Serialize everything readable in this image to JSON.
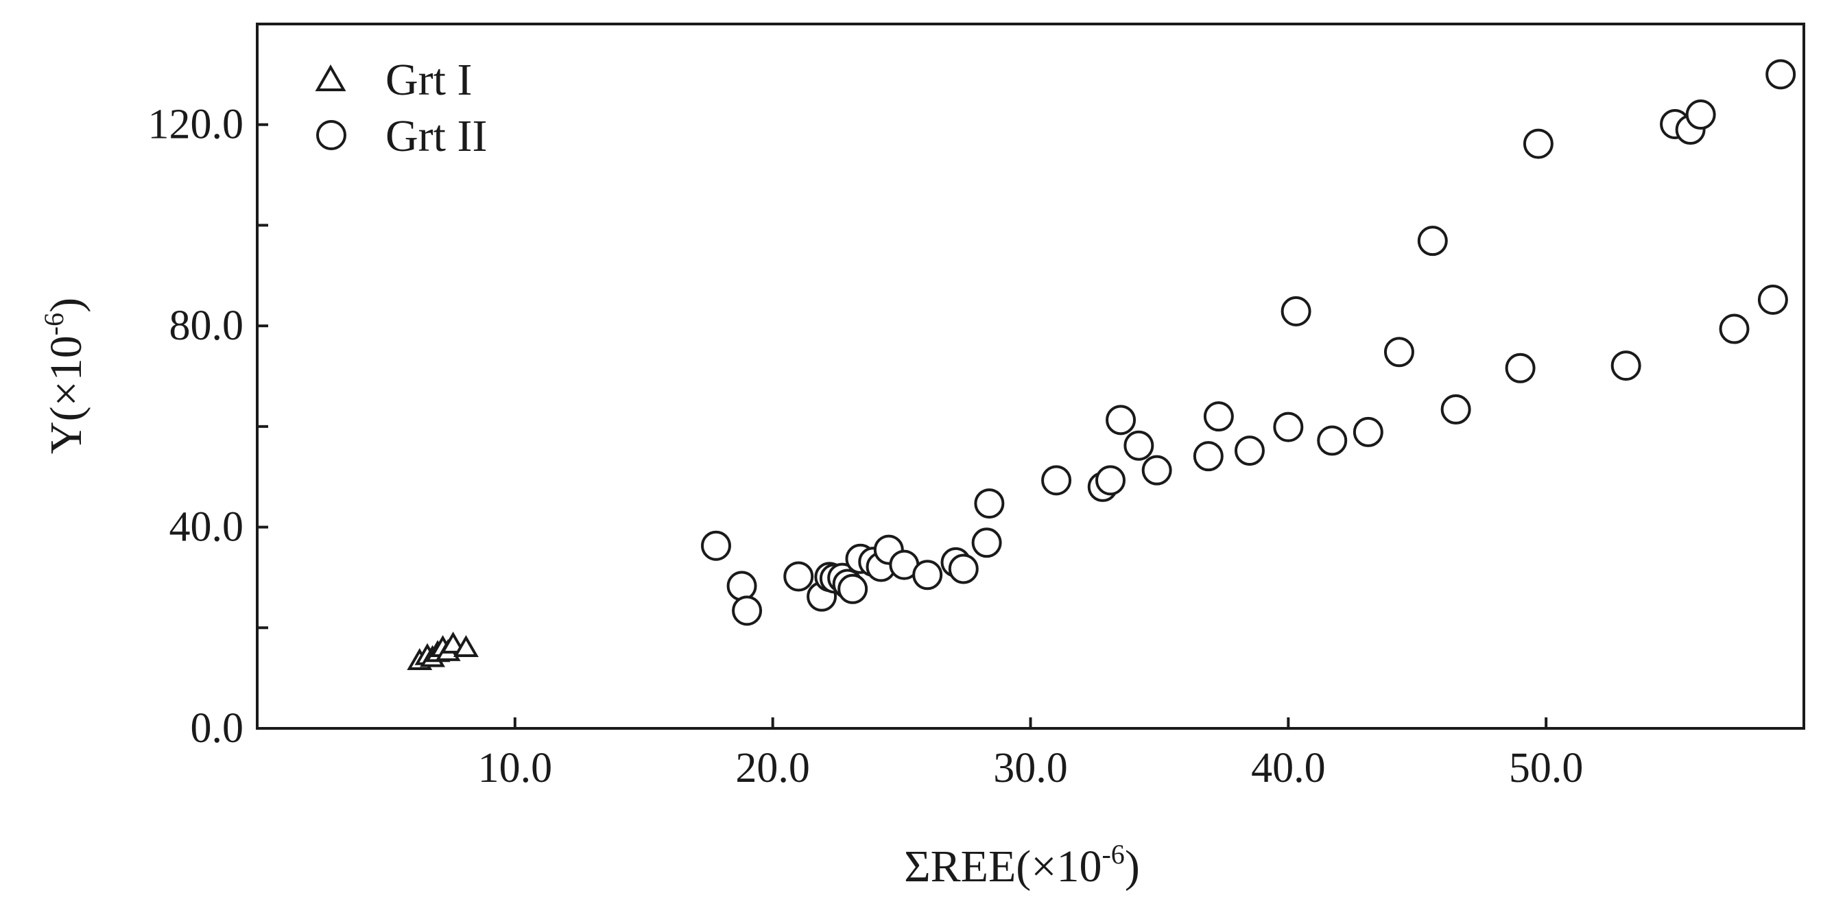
{
  "chart_data": {
    "type": "scatter",
    "xlabel": {
      "base": "ΣREE(×10",
      "exp": "-6",
      "close": ")"
    },
    "ylabel": {
      "base": "Y(×10",
      "exp": "-6",
      "close": ")"
    },
    "xlim": [
      0,
      60
    ],
    "ylim": [
      0,
      140
    ],
    "xticks": [
      10,
      20,
      30,
      40,
      50
    ],
    "xticklabels": [
      "10.0",
      "20.0",
      "30.0",
      "40.0",
      "50.0"
    ],
    "yticks": [
      0,
      40,
      80,
      120
    ],
    "yticklabels": [
      "0.0",
      "40.0",
      "80.0",
      "120.0"
    ],
    "yminor": [
      20,
      60,
      100
    ],
    "grid": false,
    "legend_position": "top-left",
    "series": [
      {
        "name": "Grt I",
        "marker": "triangle",
        "points": [
          [
            6.3,
            13.2
          ],
          [
            6.6,
            14.2
          ],
          [
            6.8,
            13.8
          ],
          [
            7.0,
            14.8
          ],
          [
            7.2,
            15.8
          ],
          [
            7.4,
            15.0
          ],
          [
            7.6,
            16.5
          ],
          [
            8.1,
            15.8
          ]
        ]
      },
      {
        "name": "Grt II",
        "marker": "circle",
        "points": [
          [
            17.8,
            36.3
          ],
          [
            18.8,
            28.3
          ],
          [
            19.0,
            23.4
          ],
          [
            21.0,
            30.2
          ],
          [
            21.9,
            26.2
          ],
          [
            22.2,
            30.1
          ],
          [
            22.4,
            29.8
          ],
          [
            22.7,
            29.9
          ],
          [
            22.9,
            28.7
          ],
          [
            23.1,
            27.7
          ],
          [
            23.4,
            33.7
          ],
          [
            23.9,
            33.1
          ],
          [
            24.2,
            32.1
          ],
          [
            24.5,
            35.5
          ],
          [
            25.1,
            32.5
          ],
          [
            26.0,
            30.5
          ],
          [
            27.1,
            33.0
          ],
          [
            27.4,
            31.7
          ],
          [
            28.3,
            36.9
          ],
          [
            28.4,
            44.7
          ],
          [
            31.0,
            49.3
          ],
          [
            32.8,
            48.0
          ],
          [
            33.1,
            49.3
          ],
          [
            33.5,
            61.3
          ],
          [
            34.2,
            56.2
          ],
          [
            34.9,
            51.3
          ],
          [
            36.9,
            54.1
          ],
          [
            37.3,
            62.0
          ],
          [
            38.5,
            55.2
          ],
          [
            40.0,
            59.9
          ],
          [
            40.3,
            82.9
          ],
          [
            41.7,
            57.2
          ],
          [
            43.1,
            58.9
          ],
          [
            44.3,
            74.8
          ],
          [
            45.6,
            96.9
          ],
          [
            46.5,
            63.4
          ],
          [
            49.0,
            71.6
          ],
          [
            49.7,
            116.2
          ],
          [
            53.1,
            72.1
          ],
          [
            55.0,
            120.1
          ],
          [
            55.6,
            119.0
          ],
          [
            56.0,
            122.0
          ],
          [
            57.3,
            79.4
          ],
          [
            58.8,
            85.2
          ],
          [
            59.1,
            130.0
          ]
        ]
      }
    ]
  }
}
